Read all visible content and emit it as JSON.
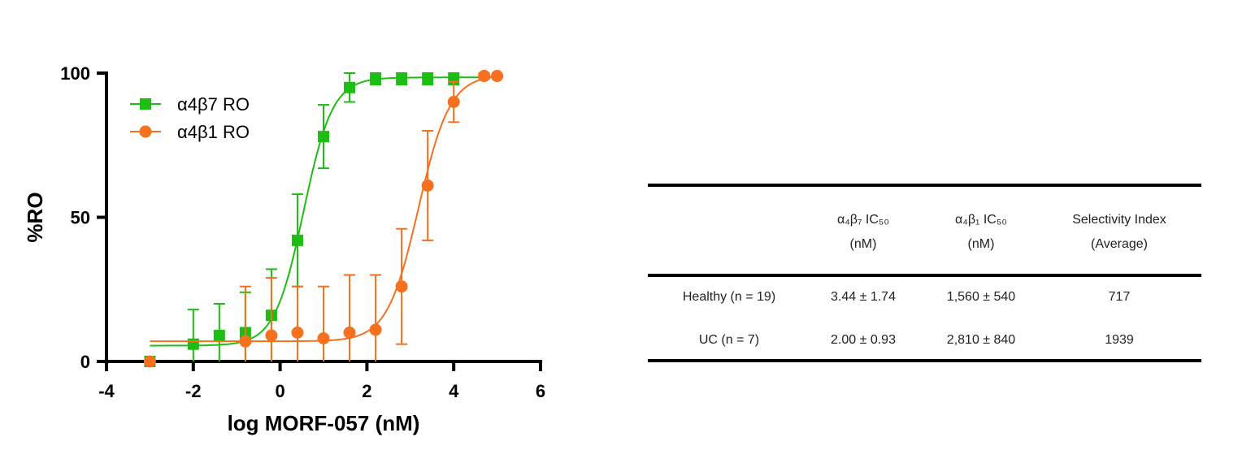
{
  "chart_data": {
    "type": "scatter",
    "xlabel": "log MORF-057 (nM)",
    "ylabel": "%RO",
    "xlim": [
      -4,
      6
    ],
    "ylim": [
      0,
      100
    ],
    "xticks": [
      "-4",
      "-2",
      "0",
      "2",
      "4",
      "6"
    ],
    "yticks": [
      "0",
      "50",
      "100"
    ],
    "grid": false,
    "legend_placement": "top-left",
    "series": [
      {
        "name": "α4β7 RO",
        "color": "#1ebd14",
        "marker": "square",
        "x": [
          -3,
          -2,
          -1.4,
          -0.8,
          -0.2,
          0.4,
          1.0,
          1.6,
          2.2,
          2.8,
          3.4,
          4.0
        ],
        "y": [
          0,
          6,
          9,
          10,
          16,
          42,
          78,
          95,
          98,
          98,
          98,
          98
        ],
        "err": [
          0,
          12,
          11,
          14,
          16,
          16,
          11,
          5,
          2,
          2,
          2,
          2
        ],
        "fit_curve": {
          "bottom": 5.5,
          "top": 98.5,
          "log_ic50": 0.54,
          "hill": 1.3
        }
      },
      {
        "name": "α4β1 RO",
        "color": "#f5701f",
        "marker": "circle",
        "x": [
          -3,
          -0.8,
          -0.2,
          0.4,
          1.0,
          1.6,
          2.2,
          2.8,
          3.4,
          4.0,
          4.7,
          5.0
        ],
        "y": [
          0,
          7,
          9,
          10,
          8,
          10,
          11,
          26,
          61,
          90,
          99,
          99
        ],
        "err": [
          0,
          19,
          20,
          16,
          18,
          20,
          19,
          20,
          19,
          7,
          1,
          0
        ],
        "fit_curve": {
          "bottom": 7,
          "top": 99.5,
          "log_ic50": 3.19,
          "hill": 1.2
        }
      }
    ]
  },
  "table": {
    "headers": [
      "",
      "α₄β₇ IC₅₀\n(nM)",
      "α₄β₁ IC₅₀\n(nM)",
      "Selectivity  Index\n(Average)"
    ],
    "rows": [
      [
        "Healthy  (n = 19)",
        "3.44 ± 1.74",
        "1,560 ± 540",
        "717"
      ],
      [
        "UC (n = 7)",
        "2.00 ± 0.93",
        "2,810 ± 840",
        "1939"
      ]
    ]
  }
}
